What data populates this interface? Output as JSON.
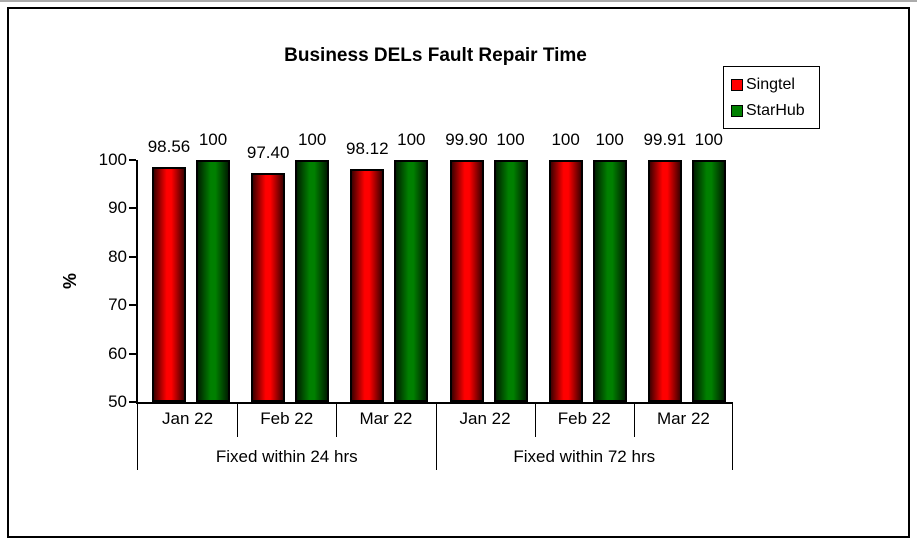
{
  "chart_data": {
    "type": "bar",
    "title": "Business DELs Fault Repair Time",
    "ylabel": "%",
    "ylim": [
      50,
      100
    ],
    "yticks": [
      50,
      60,
      70,
      80,
      90,
      100
    ],
    "grid": false,
    "legend_position": "top-right",
    "data_labels": true,
    "groups": [
      {
        "label": "Fixed within 24 hrs",
        "categories": [
          "Jan 22",
          "Feb 22",
          "Mar 22"
        ]
      },
      {
        "label": "Fixed within 72 hrs",
        "categories": [
          "Jan 22",
          "Feb 22",
          "Mar 22"
        ]
      }
    ],
    "series": [
      {
        "name": "Singtel",
        "color": "#ff0000",
        "values": [
          98.56,
          97.4,
          98.12,
          99.9,
          100,
          99.91
        ],
        "labels": [
          "98.56",
          "97.40",
          "98.12",
          "99.90",
          "100",
          "99.91"
        ]
      },
      {
        "name": "StarHub",
        "color": "#008000",
        "values": [
          100,
          100,
          100,
          100,
          100,
          100
        ],
        "labels": [
          "100",
          "100",
          "100",
          "100",
          "100",
          "100"
        ]
      }
    ]
  }
}
